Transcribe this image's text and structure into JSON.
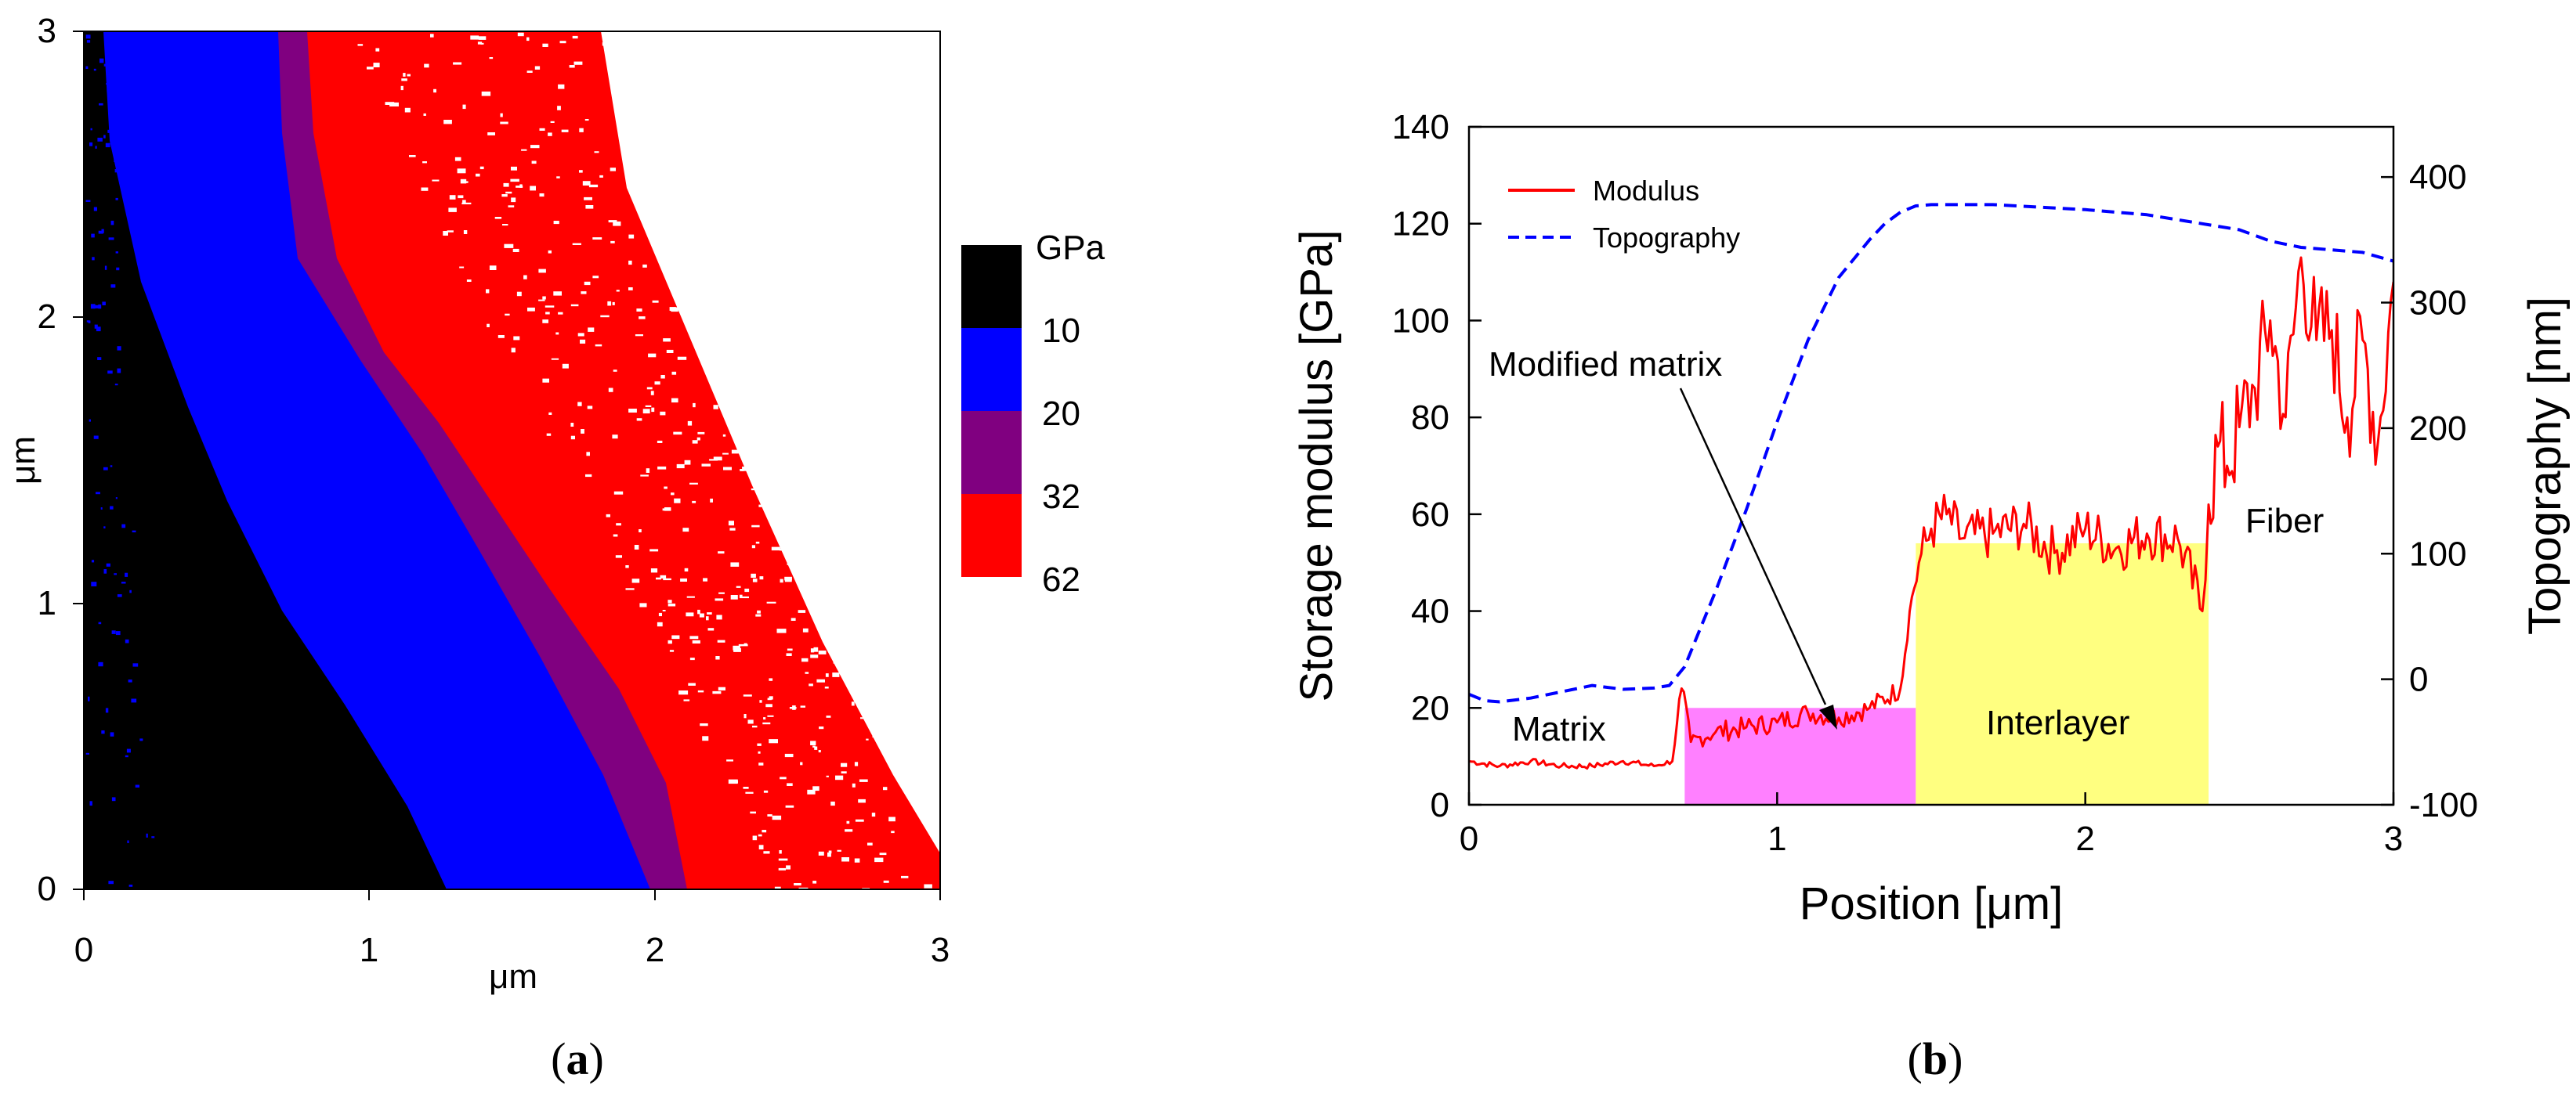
{
  "panels": {
    "a": {
      "label_open": "(",
      "letter": "a",
      "label_close": ")"
    },
    "b": {
      "label_open": "(",
      "letter": "b",
      "label_close": ")"
    }
  },
  "map": {
    "xlabel": "μm",
    "ylabel": "μm",
    "x_ticks": [
      "0",
      "1",
      "2",
      "3"
    ],
    "y_ticks": [
      "0",
      "1",
      "2",
      "3"
    ],
    "colorbar": {
      "unit": "GPa",
      "levels": [
        "10",
        "20",
        "32",
        "62"
      ],
      "colors": [
        "#000000",
        "#0000ff",
        "#800080",
        "#ff0000"
      ]
    }
  },
  "chart_data": {
    "type": "line",
    "xlabel": "Position [μm]",
    "ylabel": "Storage modulus [GPa]",
    "y2label": "Topography [nm]",
    "xlim": [
      0,
      3
    ],
    "ylim": [
      0,
      140
    ],
    "y2lim": [
      -100,
      440
    ],
    "x_ticks": [
      "0",
      "1",
      "2",
      "3"
    ],
    "y_ticks": [
      "0",
      "20",
      "40",
      "60",
      "80",
      "100",
      "120",
      "140"
    ],
    "y2_ticks": [
      "-100",
      "0",
      "100",
      "200",
      "300",
      "400"
    ],
    "legend": [
      "Modulus",
      "Topography"
    ],
    "series": [
      {
        "name": "Modulus",
        "axis": "left",
        "color": "#ff0000",
        "style": "solid",
        "x": [
          0,
          0.1,
          0.2,
          0.3,
          0.4,
          0.5,
          0.6,
          0.66,
          0.69,
          0.72,
          0.75,
          0.8,
          0.9,
          1.0,
          1.1,
          1.2,
          1.3,
          1.4,
          1.43,
          1.46,
          1.5,
          1.55,
          1.6,
          1.7,
          1.8,
          1.9,
          2.0,
          2.1,
          2.2,
          2.3,
          2.38,
          2.4,
          2.43,
          2.46,
          2.5,
          2.55,
          2.6,
          2.65,
          2.7,
          2.75,
          2.8,
          2.85,
          2.9,
          2.95,
          3.0
        ],
        "values": [
          9,
          8,
          9,
          8,
          8,
          9,
          8,
          9,
          24,
          13,
          14,
          15,
          16,
          17,
          19,
          18,
          20,
          24,
          40,
          50,
          57,
          60,
          55,
          56,
          58,
          52,
          57,
          53,
          56,
          55,
          40,
          62,
          74,
          70,
          78,
          86,
          100,
          80,
          113,
          96,
          98,
          80,
          96,
          75,
          108
        ]
      },
      {
        "name": "Topography",
        "axis": "right",
        "color": "#0000ff",
        "style": "dashed",
        "x": [
          0,
          0.05,
          0.1,
          0.2,
          0.3,
          0.4,
          0.5,
          0.6,
          0.65,
          0.7,
          0.8,
          0.9,
          1.0,
          1.1,
          1.2,
          1.3,
          1.35,
          1.4,
          1.45,
          1.5,
          1.7,
          2.0,
          2.2,
          2.4,
          2.5,
          2.6,
          2.7,
          2.8,
          2.9,
          3.0
        ],
        "values": [
          -12,
          -17,
          -18,
          -15,
          -10,
          -5,
          -8,
          -7,
          -5,
          10,
          70,
          135,
          205,
          270,
          320,
          350,
          363,
          372,
          377,
          378,
          378,
          374,
          370,
          362,
          358,
          349,
          344,
          342,
          340,
          333
        ]
      }
    ],
    "regions": [
      {
        "name": "Modified matrix",
        "x0": 0.7,
        "x1": 1.45,
        "y0": 0,
        "y1": 20,
        "color": "#ff80ff"
      },
      {
        "name": "Interlayer",
        "x0": 1.45,
        "x1": 2.4,
        "y0": 0,
        "y1": 54,
        "color": "#ffff80"
      }
    ],
    "annotations": {
      "matrix": "Matrix",
      "interlayer": "Interlayer",
      "fiber": "Fiber",
      "modified_matrix": "Modified matrix"
    }
  }
}
